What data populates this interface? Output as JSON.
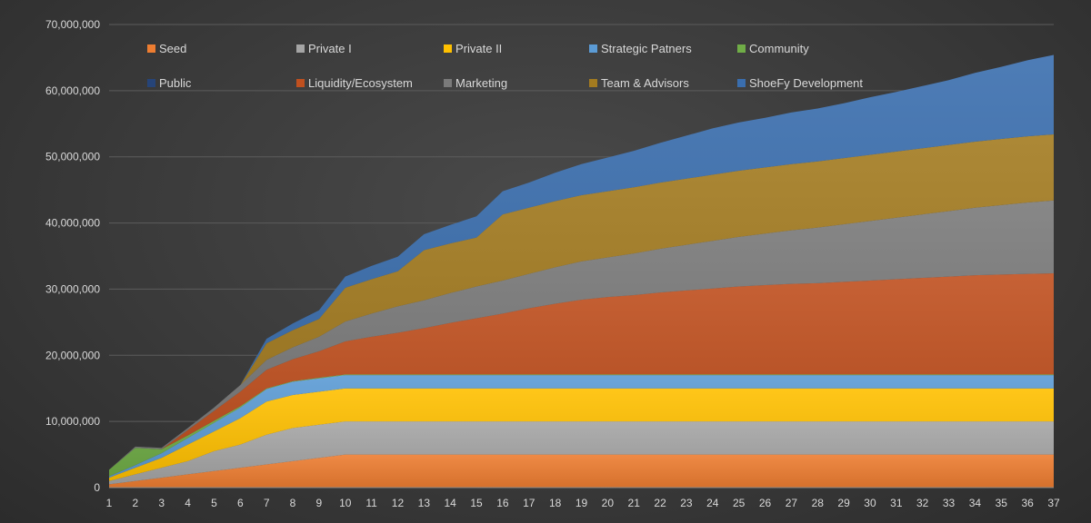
{
  "chart_data": {
    "type": "area",
    "stacked": true,
    "title": "",
    "xlabel": "",
    "ylabel": "",
    "x": [
      1,
      2,
      3,
      4,
      5,
      6,
      7,
      8,
      9,
      10,
      11,
      12,
      13,
      14,
      15,
      16,
      17,
      18,
      19,
      20,
      21,
      22,
      23,
      24,
      25,
      26,
      27,
      28,
      29,
      30,
      31,
      32,
      33,
      34,
      35,
      36,
      37
    ],
    "ylim": [
      0,
      70000000
    ],
    "yticks": [
      "0",
      "10,000,000",
      "20,000,000",
      "30,000,000",
      "40,000,000",
      "50,000,000",
      "60,000,000",
      "70,000,000"
    ],
    "ytick_values": [
      0,
      10000000,
      20000000,
      30000000,
      40000000,
      50000000,
      60000000,
      70000000
    ],
    "grid": true,
    "legend_position": "top",
    "series": [
      {
        "name": "Seed",
        "color": "#ed7d31",
        "values": [
          500000,
          1000000,
          1500000,
          2000000,
          2500000,
          3000000,
          3500000,
          4000000,
          4500000,
          5000000,
          5000000,
          5000000,
          5000000,
          5000000,
          5000000,
          5000000,
          5000000,
          5000000,
          5000000,
          5000000,
          5000000,
          5000000,
          5000000,
          5000000,
          5000000,
          5000000,
          5000000,
          5000000,
          5000000,
          5000000,
          5000000,
          5000000,
          5000000,
          5000000,
          5000000,
          5000000,
          5000000
        ]
      },
      {
        "name": "Private I",
        "color": "#a5a5a5",
        "values": [
          500000,
          1000000,
          1500000,
          2000000,
          3000000,
          3500000,
          4500000,
          5000000,
          5000000,
          5000000,
          5000000,
          5000000,
          5000000,
          5000000,
          5000000,
          5000000,
          5000000,
          5000000,
          5000000,
          5000000,
          5000000,
          5000000,
          5000000,
          5000000,
          5000000,
          5000000,
          5000000,
          5000000,
          5000000,
          5000000,
          5000000,
          5000000,
          5000000,
          5000000,
          5000000,
          5000000,
          5000000
        ]
      },
      {
        "name": "Private II",
        "color": "#ffc000",
        "values": [
          500000,
          1000000,
          1500000,
          2500000,
          3000000,
          4000000,
          5000000,
          5000000,
          5000000,
          5000000,
          5000000,
          5000000,
          5000000,
          5000000,
          5000000,
          5000000,
          5000000,
          5000000,
          5000000,
          5000000,
          5000000,
          5000000,
          5000000,
          5000000,
          5000000,
          5000000,
          5000000,
          5000000,
          5000000,
          5000000,
          5000000,
          5000000,
          5000000,
          5000000,
          5000000,
          5000000,
          5000000
        ]
      },
      {
        "name": "Strategic Patners",
        "color": "#5b9bd5",
        "values": [
          200000,
          400000,
          700000,
          1000000,
          1300000,
          1600000,
          1900000,
          2000000,
          2000000,
          2000000,
          2000000,
          2000000,
          2000000,
          2000000,
          2000000,
          2000000,
          2000000,
          2000000,
          2000000,
          2000000,
          2000000,
          2000000,
          2000000,
          2000000,
          2000000,
          2000000,
          2000000,
          2000000,
          2000000,
          2000000,
          2000000,
          2000000,
          2000000,
          2000000,
          2000000,
          2000000,
          2000000
        ]
      },
      {
        "name": "Community",
        "color": "#70ad47",
        "values": [
          1000000,
          2600000,
          600000,
          400000,
          300000,
          200000,
          100000,
          100000,
          100000,
          100000,
          100000,
          100000,
          100000,
          100000,
          100000,
          100000,
          100000,
          100000,
          100000,
          100000,
          100000,
          100000,
          100000,
          100000,
          100000,
          100000,
          100000,
          100000,
          100000,
          100000,
          100000,
          100000,
          100000,
          100000,
          100000,
          100000,
          100000
        ]
      },
      {
        "name": "Public",
        "color": "#264478",
        "values": [
          0,
          0,
          0,
          0,
          0,
          0,
          0,
          0,
          0,
          0,
          0,
          0,
          0,
          0,
          0,
          0,
          0,
          0,
          0,
          0,
          0,
          0,
          0,
          0,
          0,
          0,
          0,
          0,
          0,
          0,
          0,
          0,
          0,
          0,
          0,
          0,
          0
        ]
      },
      {
        "name": "Liquidity/Ecosystem",
        "color": "#c0501f",
        "values": [
          0,
          0,
          0,
          800000,
          1500000,
          2200000,
          2800000,
          3300000,
          4000000,
          5000000,
          5700000,
          6300000,
          7000000,
          7800000,
          8500000,
          9200000,
          10000000,
          10700000,
          11300000,
          11700000,
          12000000,
          12400000,
          12700000,
          13000000,
          13300000,
          13500000,
          13700000,
          13800000,
          14000000,
          14200000,
          14400000,
          14600000,
          14800000,
          15000000,
          15100000,
          15200000,
          15300000
        ]
      },
      {
        "name": "Marketing",
        "color": "#7a7a7a",
        "values": [
          0,
          200000,
          200000,
          300000,
          500000,
          1000000,
          1500000,
          1800000,
          2200000,
          3000000,
          3500000,
          4000000,
          4200000,
          4500000,
          4800000,
          5000000,
          5200000,
          5500000,
          5800000,
          6000000,
          6300000,
          6600000,
          6900000,
          7200000,
          7500000,
          7800000,
          8100000,
          8400000,
          8700000,
          9000000,
          9300000,
          9600000,
          9900000,
          10200000,
          10500000,
          10800000,
          11000000
        ]
      },
      {
        "name": "Team & Advisors",
        "color": "#a37b20",
        "values": [
          0,
          0,
          0,
          0,
          0,
          0,
          2500000,
          2600000,
          2700000,
          5100000,
          5200000,
          5300000,
          7600000,
          7500000,
          7400000,
          10000000,
          10000000,
          10000000,
          10000000,
          10000000,
          10000000,
          10000000,
          10000000,
          10000000,
          10000000,
          10000000,
          10000000,
          10000000,
          10000000,
          10000000,
          10000000,
          10000000,
          10000000,
          10000000,
          10000000,
          10000000,
          10000000
        ]
      },
      {
        "name": "ShoeFy Development",
        "color": "#3a6eae",
        "values": [
          0,
          0,
          0,
          0,
          0,
          0,
          700000,
          1000000,
          1300000,
          1700000,
          2000000,
          2200000,
          2400000,
          2800000,
          3200000,
          3500000,
          3800000,
          4300000,
          4700000,
          5100000,
          5500000,
          6000000,
          6500000,
          7000000,
          7300000,
          7500000,
          7800000,
          8000000,
          8300000,
          8700000,
          9000000,
          9400000,
          9800000,
          10400000,
          10900000,
          11500000,
          12000000
        ]
      }
    ]
  },
  "legend": {
    "rows": [
      [
        "Seed",
        "Private I",
        "Private II",
        "Strategic Patners",
        "Community"
      ],
      [
        "Public",
        "Liquidity/Ecosystem",
        "Marketing",
        "Team & Advisors",
        "ShoeFy Development"
      ]
    ]
  }
}
